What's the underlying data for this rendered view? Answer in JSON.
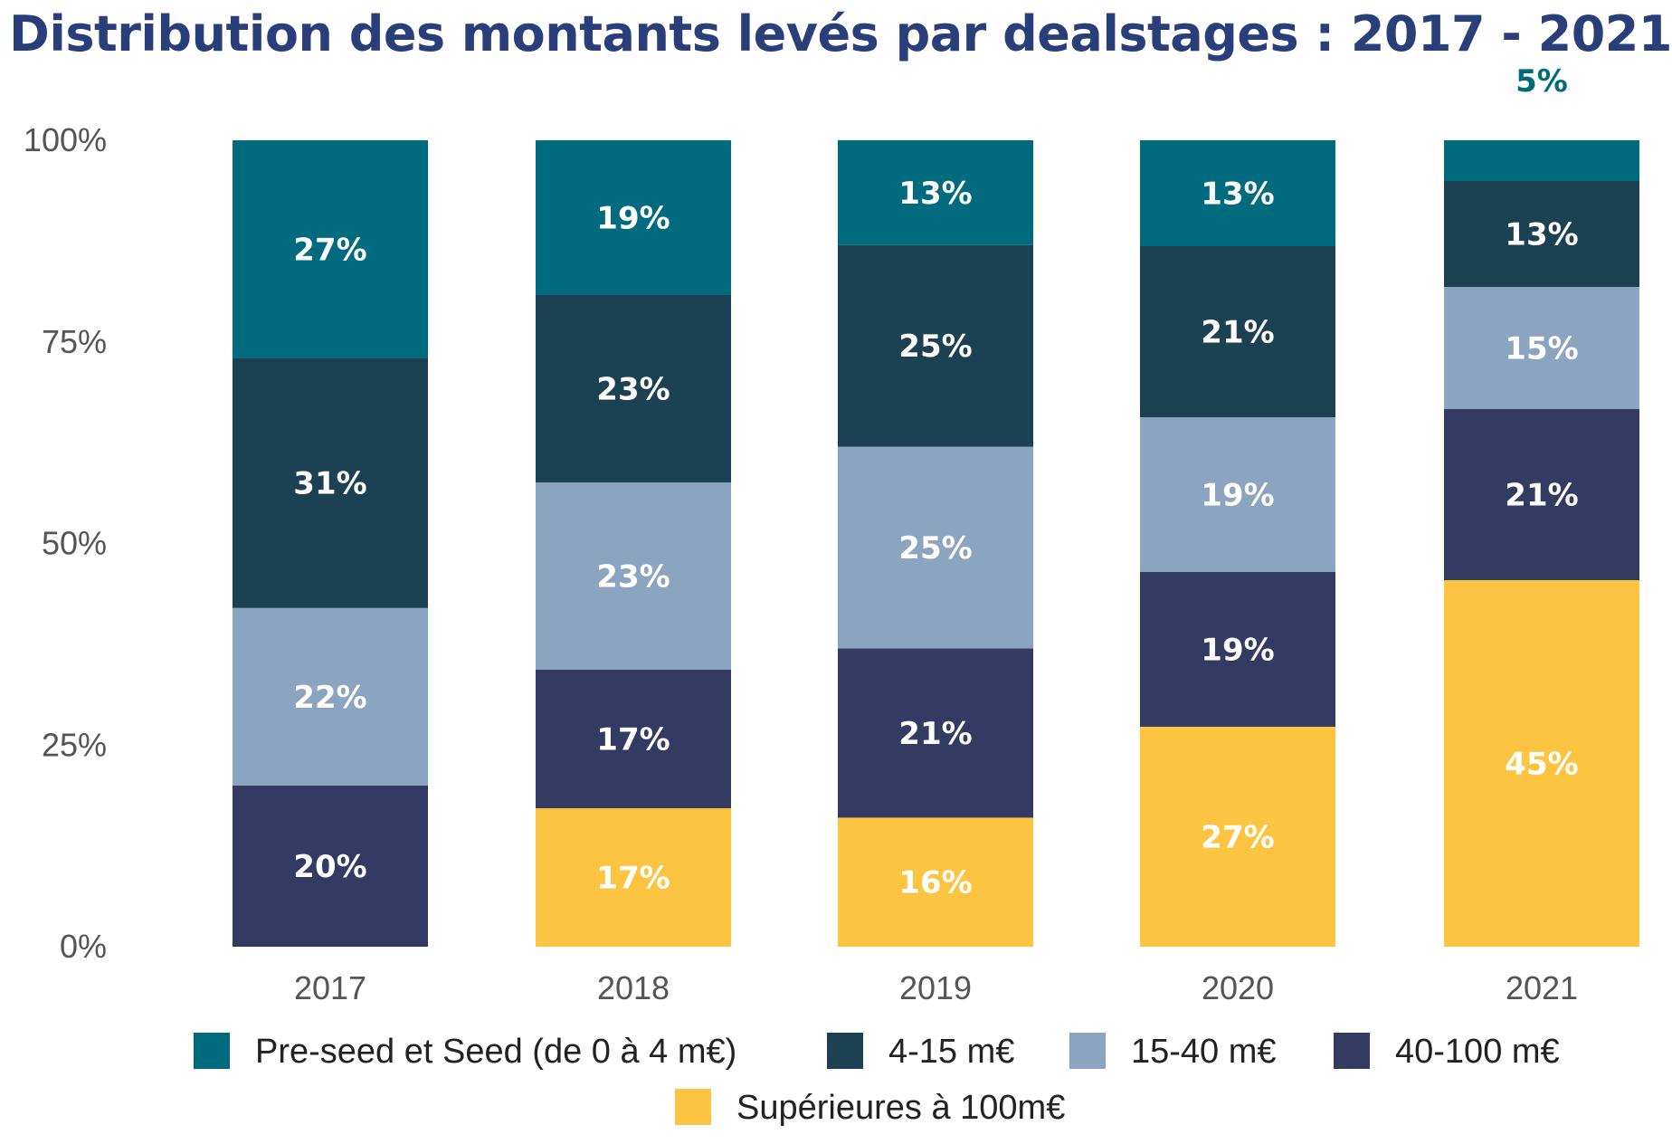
{
  "chart_data": {
    "type": "bar",
    "stacked": true,
    "title": "Distribution des montants levés par dealstages : 2017 - 2021",
    "xlabel": "",
    "ylabel": "",
    "ylim": [
      0,
      100
    ],
    "yticks": [
      "0%",
      "25%",
      "50%",
      "75%",
      "100%"
    ],
    "categories": [
      "2017",
      "2018",
      "2019",
      "2020",
      "2021"
    ],
    "series": [
      {
        "name": "Supérieures à 100m€",
        "color": "#fdc441",
        "values": [
          0,
          17,
          16,
          27,
          45
        ],
        "labels": [
          "",
          "17%",
          "16%",
          "27%",
          "45%"
        ]
      },
      {
        "name": "40-100 m€",
        "color": "#343b62",
        "values": [
          20,
          17,
          21,
          19,
          21
        ],
        "labels": [
          "20%",
          "17%",
          "21%",
          "19%",
          "21%"
        ]
      },
      {
        "name": "15-40 m€",
        "color": "#8ba4bf",
        "values": [
          22,
          23,
          25,
          19,
          15
        ],
        "labels": [
          "22%",
          "23%",
          "25%",
          "19%",
          "15%"
        ]
      },
      {
        "name": "4-15 m€",
        "color": "#1c4152",
        "values": [
          31,
          23,
          25,
          21,
          13
        ],
        "labels": [
          "31%",
          "23%",
          "25%",
          "21%",
          "13%"
        ]
      },
      {
        "name": "Pre-seed et Seed (de 0 à 4 m€)",
        "color": "#006b7f",
        "values": [
          27,
          19,
          13,
          13,
          5
        ],
        "labels": [
          "27%",
          "19%",
          "13%",
          "13%",
          "5%"
        ]
      }
    ],
    "outside_label": {
      "category": "2021",
      "series": "Pre-seed et Seed (de 0 à 4 m€)",
      "text": "5%",
      "color": "#006b7f"
    },
    "legend": {
      "position": "bottom",
      "order": [
        "Pre-seed et Seed (de 0 à 4 m€)",
        "4-15 m€",
        "15-40 m€",
        "40-100 m€",
        "Supérieures à 100m€"
      ]
    }
  }
}
